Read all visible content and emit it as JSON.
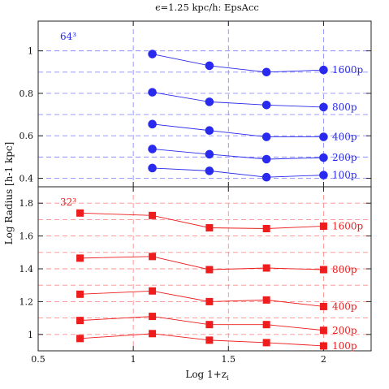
{
  "title": "ϵ=1.25 kpc/h: EpsAcc",
  "xlabel": "Log 1+z",
  "xlabel_sub": "i",
  "ylabel": "Log Radius [h-1 kpc]",
  "chart_data": [
    {
      "type": "scatter",
      "panel": "top",
      "annotation": "64³",
      "color": "#2a2aee",
      "grid_color": "#8c8cff",
      "marker": "circle",
      "xlim": [
        0.5,
        2.25
      ],
      "ylim": [
        0.36,
        1.14
      ],
      "xticks": [
        0.5,
        1,
        1.5,
        2
      ],
      "yticks": [
        0.4,
        0.6,
        0.8,
        1
      ],
      "ytick_labels": [
        "0.4",
        "0.6",
        "0.8",
        "1"
      ],
      "grid_x": [
        1,
        1.5,
        2
      ],
      "grid_y": [
        0.4,
        0.5,
        0.6,
        0.7,
        0.8,
        0.9,
        1.0
      ],
      "x": [
        1.1,
        1.4,
        1.7,
        2.0
      ],
      "series": [
        {
          "name": "1600p",
          "values": [
            0.985,
            0.93,
            0.9,
            0.91
          ]
        },
        {
          "name": "800p",
          "values": [
            0.805,
            0.76,
            0.745,
            0.735
          ]
        },
        {
          "name": "400p",
          "values": [
            0.655,
            0.625,
            0.595,
            0.595
          ]
        },
        {
          "name": "200p",
          "values": [
            0.538,
            0.513,
            0.49,
            0.497
          ]
        },
        {
          "name": "100p",
          "values": [
            0.448,
            0.435,
            0.405,
            0.415
          ]
        }
      ]
    },
    {
      "type": "scatter",
      "panel": "bottom",
      "annotation": "32³",
      "color": "#ee1c1c",
      "grid_color": "#ff8c8c",
      "marker": "square",
      "xlim": [
        0.5,
        2.25
      ],
      "ylim": [
        0.9,
        1.9
      ],
      "xticks": [
        0.5,
        1,
        1.5,
        2
      ],
      "xtick_labels": [
        "0.5",
        "1",
        "1.5",
        "2"
      ],
      "yticks": [
        1,
        1.2,
        1.4,
        1.6,
        1.8
      ],
      "ytick_labels": [
        "1",
        "1.2",
        "1.4",
        "1.6",
        "1.8"
      ],
      "grid_x": [
        1,
        1.5,
        2
      ],
      "grid_y": [
        1.0,
        1.1,
        1.2,
        1.3,
        1.4,
        1.5,
        1.6,
        1.7,
        1.8
      ],
      "x": [
        0.72,
        1.1,
        1.4,
        1.7,
        2.0
      ],
      "series": [
        {
          "name": "1600p",
          "values": [
            1.74,
            1.725,
            1.65,
            1.645,
            1.66
          ]
        },
        {
          "name": "800p",
          "values": [
            1.465,
            1.475,
            1.395,
            1.405,
            1.395
          ]
        },
        {
          "name": "400p",
          "values": [
            1.245,
            1.265,
            1.2,
            1.21,
            1.17
          ]
        },
        {
          "name": "200p",
          "values": [
            1.085,
            1.11,
            1.06,
            1.06,
            1.025
          ]
        },
        {
          "name": "100p",
          "values": [
            0.975,
            1.005,
            0.965,
            0.95,
            0.93
          ]
        }
      ]
    }
  ]
}
